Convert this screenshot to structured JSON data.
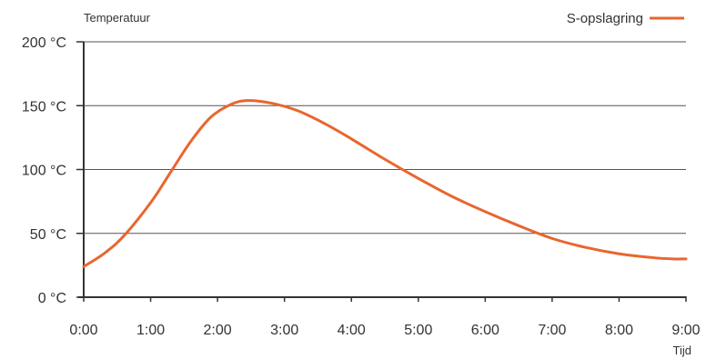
{
  "chart_data": {
    "type": "line",
    "ylabel": "Temperatuur",
    "xlabel": "Tijd",
    "ylim": [
      0,
      200
    ],
    "xlim": [
      0,
      9
    ],
    "y_ticks": [
      {
        "value": 0,
        "label": "0 °C"
      },
      {
        "value": 50,
        "label": "50 °C"
      },
      {
        "value": 100,
        "label": "100 °C"
      },
      {
        "value": 150,
        "label": "150 °C"
      },
      {
        "value": 200,
        "label": "200 °C"
      }
    ],
    "x_ticks": [
      {
        "value": 0,
        "label": "0:00"
      },
      {
        "value": 1,
        "label": "1:00"
      },
      {
        "value": 2,
        "label": "2:00"
      },
      {
        "value": 3,
        "label": "3:00"
      },
      {
        "value": 4,
        "label": "4:00"
      },
      {
        "value": 5,
        "label": "5:00"
      },
      {
        "value": 6,
        "label": "6:00"
      },
      {
        "value": 7,
        "label": "7:00"
      },
      {
        "value": 8,
        "label": "8:00"
      },
      {
        "value": 9,
        "label": "9:00"
      }
    ],
    "grid": true,
    "legend_position": "top-right",
    "series": [
      {
        "name": "S-opslagring",
        "color": "#e8662f",
        "x": [
          0,
          0.3,
          0.6,
          1.0,
          1.3,
          1.6,
          1.9,
          2.2,
          2.45,
          2.8,
          3.2,
          3.6,
          4.0,
          4.5,
          5.0,
          5.5,
          6.0,
          6.5,
          7.0,
          7.5,
          8.0,
          8.5,
          8.8,
          9.0
        ],
        "y": [
          24,
          34,
          48,
          74,
          98,
          122,
          141,
          151,
          154,
          152,
          146,
          136,
          124,
          108,
          93,
          79,
          67,
          56,
          46,
          39,
          34,
          31,
          30,
          30
        ]
      }
    ]
  }
}
